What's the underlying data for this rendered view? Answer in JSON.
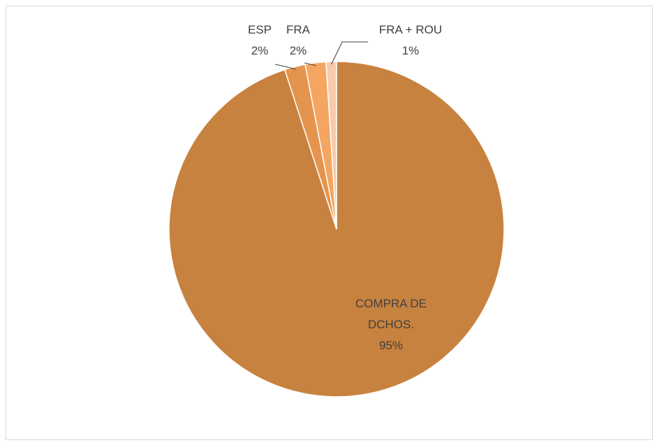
{
  "chart_data": {
    "type": "pie",
    "categories": [
      "COMPRA DE DCHOS.",
      "ESP",
      "FRA",
      "FRA + ROU"
    ],
    "values": [
      95,
      2,
      2,
      1
    ],
    "value_labels": [
      "95%",
      "2%",
      "2%",
      "1%"
    ],
    "colors": [
      "#c8823f",
      "#e4944d",
      "#f4a661",
      "#f8cbad"
    ],
    "start_angle": 0,
    "direction": "clockwise"
  }
}
